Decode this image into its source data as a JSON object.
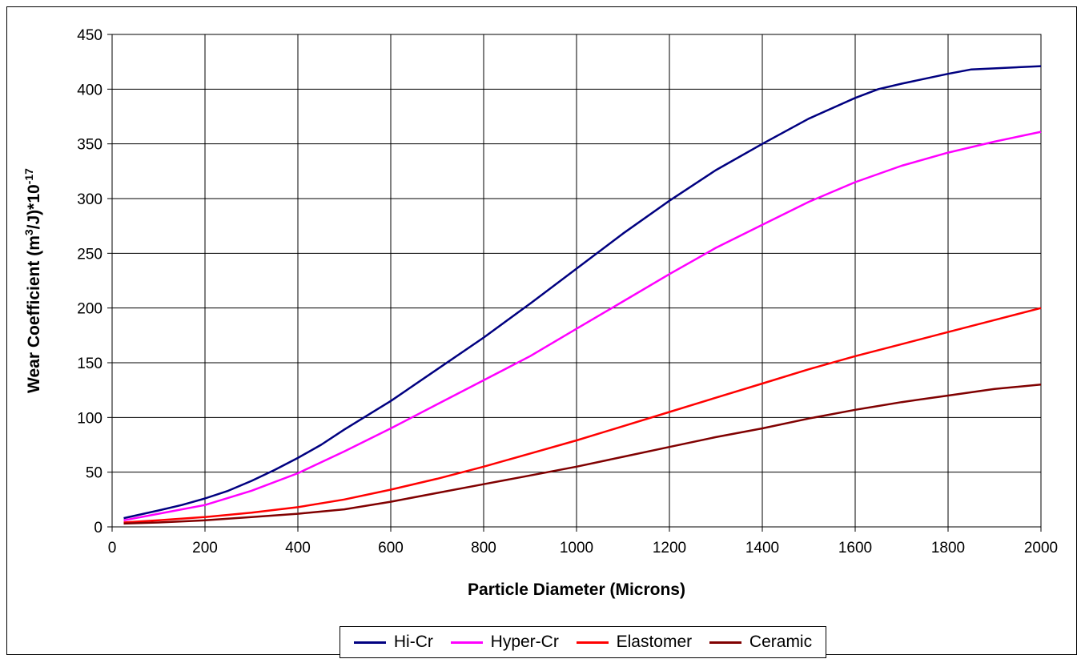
{
  "chart_data": {
    "type": "line",
    "title": "",
    "xlabel": "Particle Diameter (Microns)",
    "ylabel_parts": [
      "Wear Coefficient (m",
      "3",
      "/J)*10",
      "-17"
    ],
    "xlim": [
      0,
      2000
    ],
    "ylim": [
      0,
      450
    ],
    "xticks": [
      0,
      200,
      400,
      600,
      800,
      1000,
      1200,
      1400,
      1600,
      1800,
      2000
    ],
    "yticks": [
      0,
      50,
      100,
      150,
      200,
      250,
      300,
      350,
      400,
      450
    ],
    "grid": true,
    "legend_position": "bottom",
    "series": [
      {
        "name": "Hi-Cr",
        "color": "#000080",
        "x": [
          25,
          100,
          150,
          200,
          250,
          300,
          350,
          400,
          450,
          500,
          600,
          700,
          800,
          900,
          1000,
          1100,
          1200,
          1300,
          1400,
          1500,
          1600,
          1650,
          1700,
          1800,
          1850,
          1900,
          2000
        ],
        "y": [
          8,
          15,
          20,
          26,
          33,
          42,
          52,
          63,
          75,
          89,
          115,
          144,
          173,
          204,
          236,
          268,
          298,
          326,
          350,
          373,
          392,
          400,
          405,
          414,
          418,
          419,
          421
        ]
      },
      {
        "name": "Hyper-Cr",
        "color": "#ff00ff",
        "x": [
          25,
          100,
          200,
          300,
          400,
          500,
          600,
          700,
          800,
          900,
          1000,
          1100,
          1200,
          1300,
          1400,
          1500,
          1600,
          1700,
          1800,
          1900,
          2000
        ],
        "y": [
          6,
          12,
          20,
          33,
          49,
          69,
          90,
          112,
          134,
          156,
          181,
          206,
          231,
          255,
          276,
          297,
          315,
          330,
          342,
          352,
          361
        ]
      },
      {
        "name": "Elastomer",
        "color": "#ff0000",
        "x": [
          25,
          100,
          200,
          300,
          400,
          500,
          600,
          700,
          800,
          900,
          1000,
          1100,
          1200,
          1300,
          1400,
          1500,
          1600,
          1700,
          1800,
          1900,
          2000
        ],
        "y": [
          4,
          6,
          9,
          13,
          18,
          25,
          34,
          44,
          55,
          67,
          79,
          92,
          105,
          118,
          131,
          144,
          156,
          167,
          178,
          189,
          200
        ]
      },
      {
        "name": "Ceramic",
        "color": "#800000",
        "x": [
          25,
          100,
          200,
          300,
          400,
          500,
          600,
          700,
          800,
          900,
          1000,
          1100,
          1200,
          1300,
          1400,
          1500,
          1600,
          1700,
          1800,
          1900,
          2000
        ],
        "y": [
          3,
          4,
          6,
          9,
          12,
          16,
          23,
          31,
          39,
          47,
          55,
          64,
          73,
          82,
          90,
          99,
          107,
          114,
          120,
          126,
          130
        ]
      }
    ]
  }
}
